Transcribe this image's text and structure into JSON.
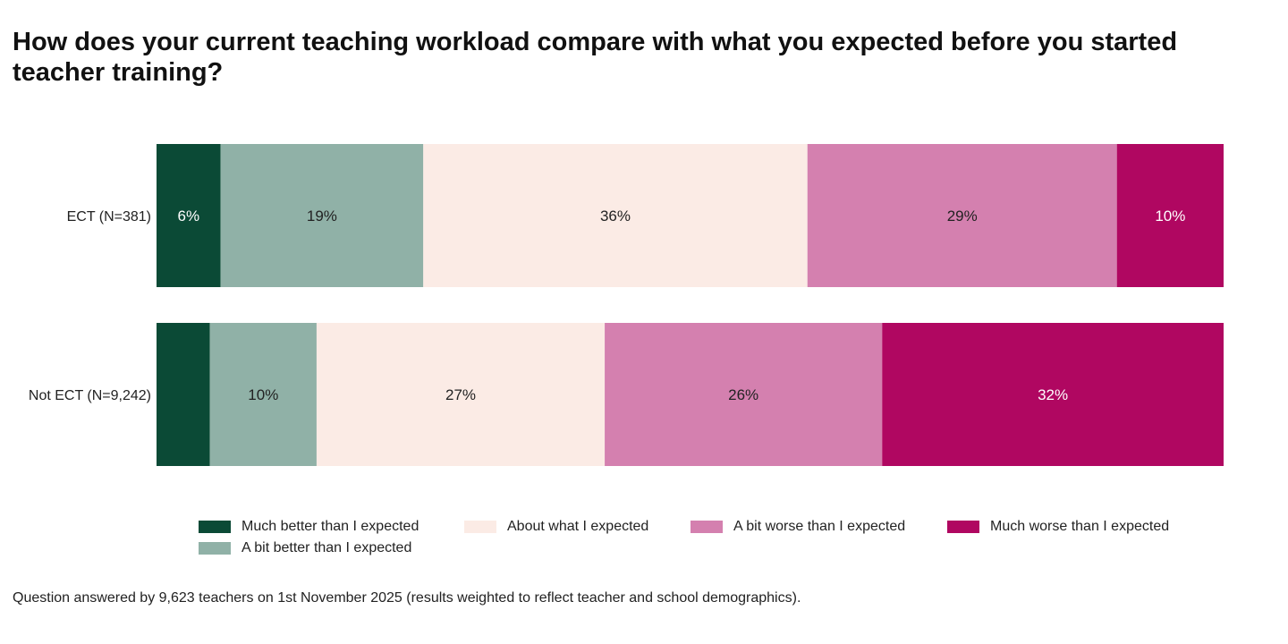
{
  "title": "How does your current teaching workload compare with what you expected before you started teacher training?",
  "footnote": "Question answered by 9,623 teachers on 1st November 2025 (results weighted to reflect teacher and school demographics).",
  "chart_data": {
    "type": "bar",
    "orientation": "horizontal",
    "stacked": true,
    "normalized": true,
    "categories": [
      "ECT (N=381)",
      "Not ECT (N=9,242)"
    ],
    "series": [
      {
        "name": "Much better than I expected",
        "color": "#0b4a36",
        "values": [
          6,
          5
        ],
        "labels": [
          "6%",
          ""
        ]
      },
      {
        "name": "A bit better than I expected",
        "color": "#90b1a7",
        "values": [
          19,
          10
        ],
        "labels": [
          "19%",
          "10%"
        ]
      },
      {
        "name": "About what I expected",
        "color": "#fbebe5",
        "values": [
          36,
          27
        ],
        "labels": [
          "36%",
          "27%"
        ]
      },
      {
        "name": "A bit worse than I expected",
        "color": "#d480af",
        "values": [
          29,
          26
        ],
        "labels": [
          "29%",
          "26%"
        ]
      },
      {
        "name": "Much worse than I expected",
        "color": "#b00761",
        "values": [
          10,
          32
        ],
        "labels": [
          "10%",
          "32%"
        ]
      }
    ],
    "legend_position": "bottom",
    "grid": false
  }
}
